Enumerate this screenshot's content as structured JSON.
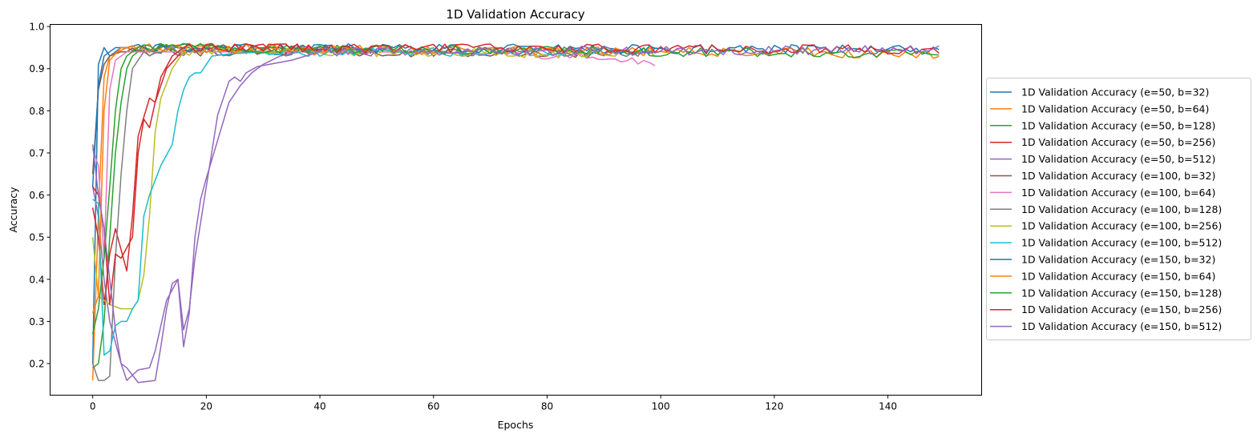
{
  "chart_data": {
    "type": "line",
    "title": "1D Validation Accuracy",
    "xlabel": "Epochs",
    "ylabel": "Accuracy",
    "xlim": [
      -7.5,
      156.5
    ],
    "ylim": [
      0.125,
      1.005
    ],
    "xticks": [
      0,
      20,
      40,
      60,
      80,
      100,
      120,
      140
    ],
    "yticks": [
      0.2,
      0.3,
      0.4,
      0.5,
      0.6,
      0.7,
      0.8,
      0.9,
      1.0
    ],
    "xtick_labels": [
      "0",
      "20",
      "40",
      "60",
      "80",
      "100",
      "120",
      "140"
    ],
    "ytick_labels": [
      "0.2",
      "0.3",
      "0.4",
      "0.5",
      "0.6",
      "0.7",
      "0.8",
      "0.9",
      "1.0"
    ],
    "legend_position": "center-right outside",
    "series": [
      {
        "name": "1D Validation Accuracy (e=50, b=32)",
        "color": "#1f77b4",
        "epochs": 50,
        "seed": 11,
        "anchors": [
          [
            0,
            0.2
          ],
          [
            1,
            0.91
          ],
          [
            2,
            0.95
          ],
          [
            3,
            0.93
          ],
          [
            5,
            0.95
          ],
          [
            49,
            0.945
          ]
        ]
      },
      {
        "name": "1D Validation Accuracy (e=50, b=64)",
        "color": "#ff7f0e",
        "epochs": 50,
        "seed": 12,
        "anchors": [
          [
            0,
            0.16
          ],
          [
            1,
            0.55
          ],
          [
            2,
            0.88
          ],
          [
            3,
            0.93
          ],
          [
            6,
            0.95
          ],
          [
            49,
            0.94
          ]
        ]
      },
      {
        "name": "1D Validation Accuracy (e=50, b=128)",
        "color": "#2ca02c",
        "epochs": 50,
        "seed": 13,
        "anchors": [
          [
            0,
            0.19
          ],
          [
            1,
            0.2
          ],
          [
            2,
            0.3
          ],
          [
            3,
            0.5
          ],
          [
            4,
            0.7
          ],
          [
            5,
            0.82
          ],
          [
            6,
            0.9
          ],
          [
            7,
            0.93
          ],
          [
            9,
            0.95
          ],
          [
            49,
            0.945
          ]
        ]
      },
      {
        "name": "1D Validation Accuracy (e=50, b=256)",
        "color": "#d62728",
        "epochs": 50,
        "seed": 14,
        "anchors": [
          [
            0,
            0.57
          ],
          [
            1,
            0.5
          ],
          [
            2,
            0.34
          ],
          [
            3,
            0.46
          ],
          [
            4,
            0.52
          ],
          [
            6,
            0.42
          ],
          [
            7,
            0.55
          ],
          [
            8,
            0.74
          ],
          [
            10,
            0.83
          ],
          [
            11,
            0.82
          ],
          [
            13,
            0.9
          ],
          [
            15,
            0.93
          ],
          [
            18,
            0.95
          ],
          [
            49,
            0.945
          ]
        ]
      },
      {
        "name": "1D Validation Accuracy (e=50, b=512)",
        "color": "#9467bd",
        "epochs": 50,
        "seed": 15,
        "anchors": [
          [
            0,
            0.62
          ],
          [
            1,
            0.55
          ],
          [
            2,
            0.4
          ],
          [
            3,
            0.3
          ],
          [
            5,
            0.2
          ],
          [
            6,
            0.19
          ],
          [
            8,
            0.155
          ],
          [
            11,
            0.16
          ],
          [
            12,
            0.24
          ],
          [
            13,
            0.33
          ],
          [
            14,
            0.39
          ],
          [
            15,
            0.4
          ],
          [
            16,
            0.24
          ],
          [
            17,
            0.32
          ],
          [
            18,
            0.5
          ],
          [
            19,
            0.59
          ],
          [
            20,
            0.64
          ],
          [
            22,
            0.73
          ],
          [
            24,
            0.82
          ],
          [
            26,
            0.86
          ],
          [
            28,
            0.89
          ],
          [
            30,
            0.91
          ],
          [
            33,
            0.93
          ],
          [
            38,
            0.945
          ],
          [
            49,
            0.94
          ]
        ]
      },
      {
        "name": "1D Validation Accuracy (e=100, b=32)",
        "color": "#8c564b",
        "epochs": 100,
        "seed": 21,
        "anchors": [
          [
            0,
            0.65
          ],
          [
            1,
            0.85
          ],
          [
            2,
            0.91
          ],
          [
            3,
            0.93
          ],
          [
            5,
            0.94
          ],
          [
            99,
            0.935
          ]
        ]
      },
      {
        "name": "1D Validation Accuracy (e=100, b=64)",
        "color": "#e377c2",
        "epochs": 100,
        "seed": 22,
        "anchors": [
          [
            0,
            0.71
          ],
          [
            1,
            0.67
          ],
          [
            2,
            0.45
          ],
          [
            3,
            0.85
          ],
          [
            4,
            0.92
          ],
          [
            6,
            0.94
          ],
          [
            50,
            0.94
          ],
          [
            70,
            0.935
          ],
          [
            99,
            0.915
          ]
        ]
      },
      {
        "name": "1D Validation Accuracy (e=100, b=128)",
        "color": "#7f7f7f",
        "epochs": 100,
        "seed": 23,
        "anchors": [
          [
            0,
            0.2
          ],
          [
            1,
            0.16
          ],
          [
            2,
            0.16
          ],
          [
            3,
            0.17
          ],
          [
            4,
            0.45
          ],
          [
            5,
            0.65
          ],
          [
            6,
            0.8
          ],
          [
            7,
            0.9
          ],
          [
            9,
            0.94
          ],
          [
            99,
            0.94
          ]
        ]
      },
      {
        "name": "1D Validation Accuracy (e=100, b=256)",
        "color": "#bcbd22",
        "epochs": 100,
        "seed": 24,
        "anchors": [
          [
            0,
            0.5
          ],
          [
            1,
            0.36
          ],
          [
            3,
            0.34
          ],
          [
            5,
            0.33
          ],
          [
            7,
            0.33
          ],
          [
            8,
            0.35
          ],
          [
            9,
            0.41
          ],
          [
            10,
            0.55
          ],
          [
            11,
            0.75
          ],
          [
            12,
            0.83
          ],
          [
            14,
            0.9
          ],
          [
            16,
            0.94
          ],
          [
            99,
            0.935
          ]
        ]
      },
      {
        "name": "1D Validation Accuracy (e=100, b=512)",
        "color": "#17becf",
        "epochs": 100,
        "seed": 25,
        "anchors": [
          [
            0,
            0.59
          ],
          [
            1,
            0.58
          ],
          [
            2,
            0.22
          ],
          [
            3,
            0.23
          ],
          [
            4,
            0.29
          ],
          [
            5,
            0.3
          ],
          [
            6,
            0.3
          ],
          [
            7,
            0.33
          ],
          [
            8,
            0.35
          ],
          [
            9,
            0.55
          ],
          [
            10,
            0.6
          ],
          [
            12,
            0.67
          ],
          [
            14,
            0.72
          ],
          [
            15,
            0.8
          ],
          [
            16,
            0.85
          ],
          [
            17,
            0.88
          ],
          [
            18,
            0.89
          ],
          [
            19,
            0.89
          ],
          [
            21,
            0.93
          ],
          [
            24,
            0.935
          ],
          [
            30,
            0.94
          ],
          [
            99,
            0.94
          ]
        ]
      },
      {
        "name": "1D Validation Accuracy (e=150, b=32)",
        "color": "#1f77b4",
        "epochs": 150,
        "seed": 31,
        "anchors": [
          [
            0,
            0.62
          ],
          [
            1,
            0.86
          ],
          [
            2,
            0.93
          ],
          [
            4,
            0.95
          ],
          [
            149,
            0.945
          ]
        ]
      },
      {
        "name": "1D Validation Accuracy (e=150, b=64)",
        "color": "#ff7f0e",
        "epochs": 150,
        "seed": 32,
        "anchors": [
          [
            0,
            0.32
          ],
          [
            1,
            0.36
          ],
          [
            2,
            0.8
          ],
          [
            3,
            0.92
          ],
          [
            5,
            0.95
          ],
          [
            149,
            0.935
          ]
        ]
      },
      {
        "name": "1D Validation Accuracy (e=150, b=128)",
        "color": "#2ca02c",
        "epochs": 150,
        "seed": 33,
        "anchors": [
          [
            0,
            0.27
          ],
          [
            1,
            0.33
          ],
          [
            2,
            0.45
          ],
          [
            3,
            0.62
          ],
          [
            4,
            0.8
          ],
          [
            5,
            0.9
          ],
          [
            6,
            0.93
          ],
          [
            8,
            0.95
          ],
          [
            149,
            0.935
          ]
        ]
      },
      {
        "name": "1D Validation Accuracy (e=150, b=256)",
        "color": "#d62728",
        "epochs": 150,
        "seed": 34,
        "anchors": [
          [
            0,
            0.62
          ],
          [
            1,
            0.6
          ],
          [
            2,
            0.52
          ],
          [
            3,
            0.34
          ],
          [
            4,
            0.46
          ],
          [
            5,
            0.45
          ],
          [
            7,
            0.5
          ],
          [
            8,
            0.7
          ],
          [
            9,
            0.78
          ],
          [
            10,
            0.76
          ],
          [
            12,
            0.88
          ],
          [
            14,
            0.93
          ],
          [
            16,
            0.95
          ],
          [
            149,
            0.945
          ]
        ]
      },
      {
        "name": "1D Validation Accuracy (e=150, b=512)",
        "color": "#9467bd",
        "epochs": 150,
        "seed": 35,
        "anchors": [
          [
            0,
            0.72
          ],
          [
            1,
            0.6
          ],
          [
            2,
            0.52
          ],
          [
            3,
            0.4
          ],
          [
            4,
            0.28
          ],
          [
            5,
            0.2
          ],
          [
            6,
            0.16
          ],
          [
            8,
            0.185
          ],
          [
            10,
            0.19
          ],
          [
            11,
            0.23
          ],
          [
            13,
            0.35
          ],
          [
            15,
            0.4
          ],
          [
            16,
            0.28
          ],
          [
            17,
            0.33
          ],
          [
            18,
            0.45
          ],
          [
            20,
            0.62
          ],
          [
            22,
            0.79
          ],
          [
            24,
            0.87
          ],
          [
            25,
            0.88
          ],
          [
            26,
            0.87
          ],
          [
            27,
            0.89
          ],
          [
            29,
            0.905
          ],
          [
            31,
            0.91
          ],
          [
            35,
            0.92
          ],
          [
            40,
            0.94
          ],
          [
            149,
            0.945
          ]
        ]
      }
    ]
  }
}
